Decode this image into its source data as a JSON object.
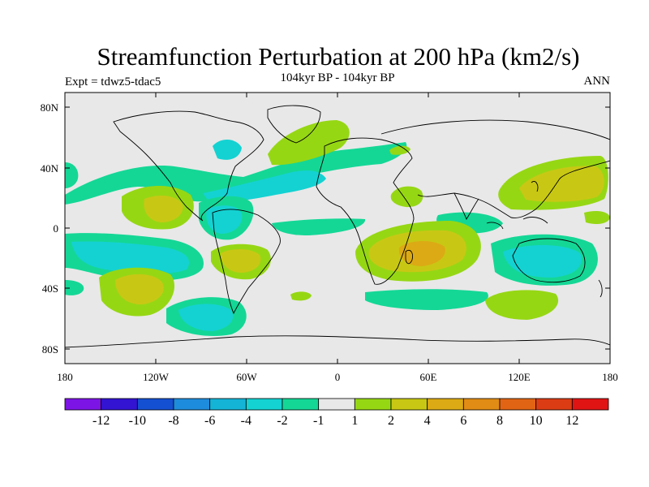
{
  "title": "Streamfunction Perturbation at 200 hPa (km2/s)",
  "subtitle": "104kyr BP - 104kyr BP",
  "expt_label": "Expt = tdwz5-tdac5",
  "season": "ANN",
  "map": {
    "lat_ticks": [
      "80N",
      "40N",
      "0",
      "40S",
      "80S"
    ],
    "lon_ticks": [
      "180",
      "120W",
      "60W",
      "0",
      "60E",
      "120E",
      "180"
    ],
    "background_color": "#e8e8e8",
    "coast_color": "#000000"
  },
  "colorbar": {
    "colors": [
      "#7d14e6",
      "#3214d2",
      "#1450d2",
      "#1e8cdc",
      "#14b4d7",
      "#14d2d2",
      "#14d796",
      "#e8e8e8",
      "#96d714",
      "#c8c814",
      "#dcaa14",
      "#e18c14",
      "#e16414",
      "#dc3c14",
      "#e11414"
    ],
    "labels": [
      "-12",
      "-10",
      "-8",
      "-6",
      "-4",
      "-2",
      "-1",
      "1",
      "2",
      "4",
      "6",
      "8",
      "10",
      "12"
    ]
  },
  "palette": {
    "neg1": "#14d796",
    "neg2": "#14d2d2",
    "pos1": "#96d714",
    "pos2": "#c8c814",
    "pos3": "#dcaa14"
  }
}
